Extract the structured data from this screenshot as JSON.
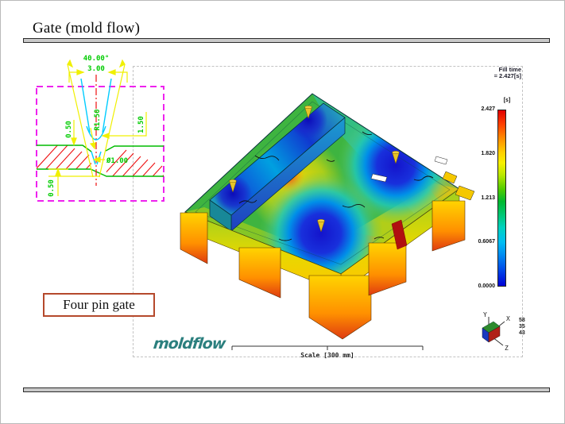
{
  "slide": {
    "title": "Gate (mold flow)"
  },
  "cad": {
    "dim_angle": "40.00°",
    "dim_top_width": "3.00",
    "dim_radius": "R1.50",
    "dim_land_left": "0.50",
    "dim_right": "1.50",
    "dim_diameter": "Ø1.00",
    "dim_step_bottom": "0.50"
  },
  "result": {
    "header_line1": "Fill time",
    "header_line2": "= 2.427[s]",
    "unit": "[s]",
    "legend": {
      "ticks": [
        "2.427",
        "1.820",
        "1.213",
        "0.6067",
        "0.0000"
      ]
    },
    "scale_label": "Scale [300 mm]",
    "axis": {
      "x": "X",
      "y": "Y",
      "z": "Z",
      "values": "58 35 43"
    }
  },
  "caption": {
    "label": "Four pin gate"
  },
  "logo": {
    "text": "moldflow"
  },
  "colors": {
    "accent_teal": "#2b7f7e",
    "caption_border": "#b5492c",
    "cad_magenta": "#ee22ee",
    "cad_yellow": "#f0f000",
    "cad_green": "#00cc00",
    "cad_cyan": "#00ccff",
    "cad_red": "#ee1111",
    "legend_top": "#e00000",
    "legend_bottom": "#0000d6"
  }
}
